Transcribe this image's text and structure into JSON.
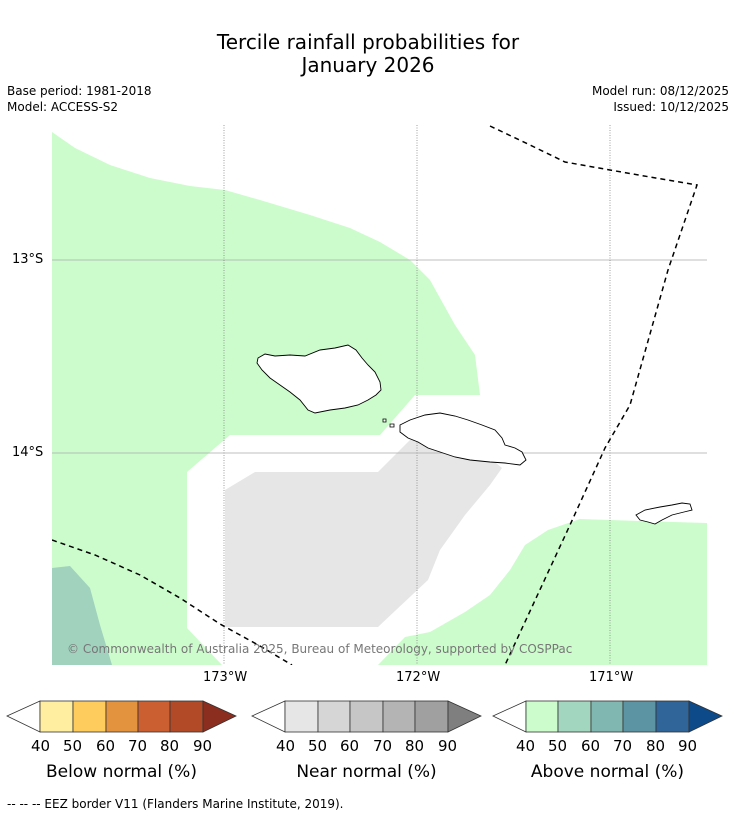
{
  "title_line1": "Tercile rainfall probabilities for",
  "title_line2": "January 2026",
  "meta": {
    "base_period": "Base period: 1981-2018",
    "model": "Model: ACCESS-S2",
    "model_run": "Model run: 08/12/2025",
    "issued": "Issued: 10/12/2025"
  },
  "map": {
    "lat_labels": [
      "13°S",
      "14°S"
    ],
    "lon_labels": [
      "173°W",
      "172°W",
      "171°W"
    ],
    "copyright": "© Commonwealth of Australia 2025, Bureau of Meteorology, supported by COSPPac",
    "land_color": "#ffffff",
    "above_light_color": "#ccfccc",
    "above_mid_color": "#a0d2be",
    "near_color": "#e6e6e6"
  },
  "legends": [
    {
      "title": "Below normal (%)",
      "ticks": [
        "40",
        "50",
        "60",
        "70",
        "80",
        "90"
      ],
      "colors": [
        "#ffffff",
        "#ffeda0",
        "#fecc5c",
        "#e3933e",
        "#cb5f31",
        "#b24a28",
        "#8b2e1f"
      ]
    },
    {
      "title": "Near normal (%)",
      "ticks": [
        "40",
        "50",
        "60",
        "70",
        "80",
        "90"
      ],
      "colors": [
        "#ffffff",
        "#e6e6e6",
        "#d6d6d6",
        "#c6c6c6",
        "#b4b4b4",
        "#a0a0a0",
        "#7f7f7f"
      ]
    },
    {
      "title": "Above normal (%)",
      "ticks": [
        "40",
        "50",
        "60",
        "70",
        "80",
        "90"
      ],
      "colors": [
        "#ffffff",
        "#ccfccc",
        "#a3d6bf",
        "#80b7b0",
        "#5d94a3",
        "#2f6599",
        "#0d4a8a"
      ]
    }
  ],
  "footer": "--  --  -- EEZ border V11 (Flanders Marine Institute, 2019)."
}
